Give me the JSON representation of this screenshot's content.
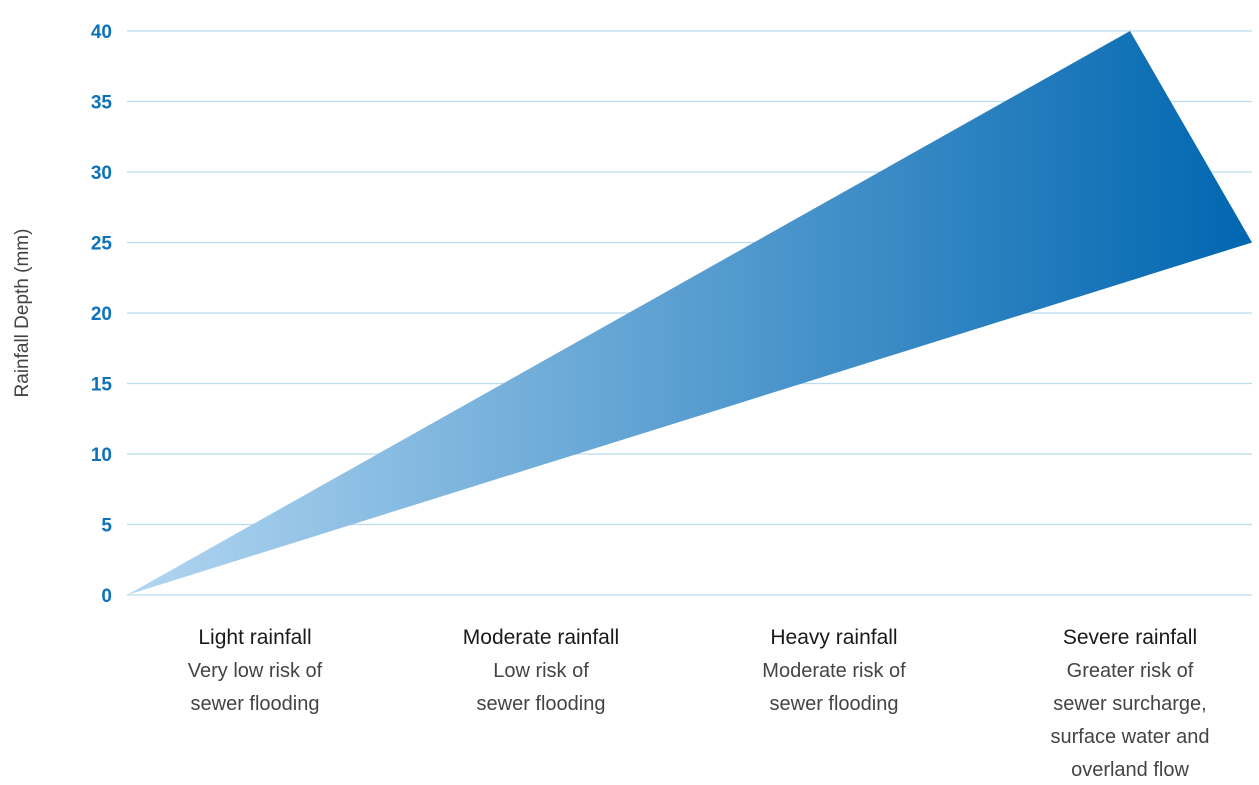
{
  "chart_data": {
    "type": "area",
    "ylabel": "Rainfall Depth (mm)",
    "xlabel": "",
    "ylim": [
      0,
      40
    ],
    "yticks": [
      "0",
      "5",
      "10",
      "15",
      "20",
      "25",
      "30",
      "35",
      "40"
    ],
    "grid": true,
    "categories": [
      {
        "title": "Light rainfall",
        "description": [
          "Very low risk of",
          "sewer flooding"
        ]
      },
      {
        "title": "Moderate rainfall",
        "description": [
          "Low risk of",
          "sewer flooding"
        ]
      },
      {
        "title": "Heavy rainfall",
        "description": [
          "Moderate risk of",
          "sewer flooding"
        ]
      },
      {
        "title": "Severe rainfall",
        "description": [
          "Greater risk of",
          "sewer surcharge,",
          "surface water and",
          "overland flow"
        ]
      }
    ],
    "series": [
      {
        "values_upper": [
          0,
          40
        ],
        "values_lower": [
          0,
          25
        ]
      }
    ]
  },
  "colors": {
    "tick_text": "#0d72b9",
    "grid": "#b9dcef",
    "gradient_start": "#b2d6f1",
    "gradient_end": "#0066b0"
  }
}
